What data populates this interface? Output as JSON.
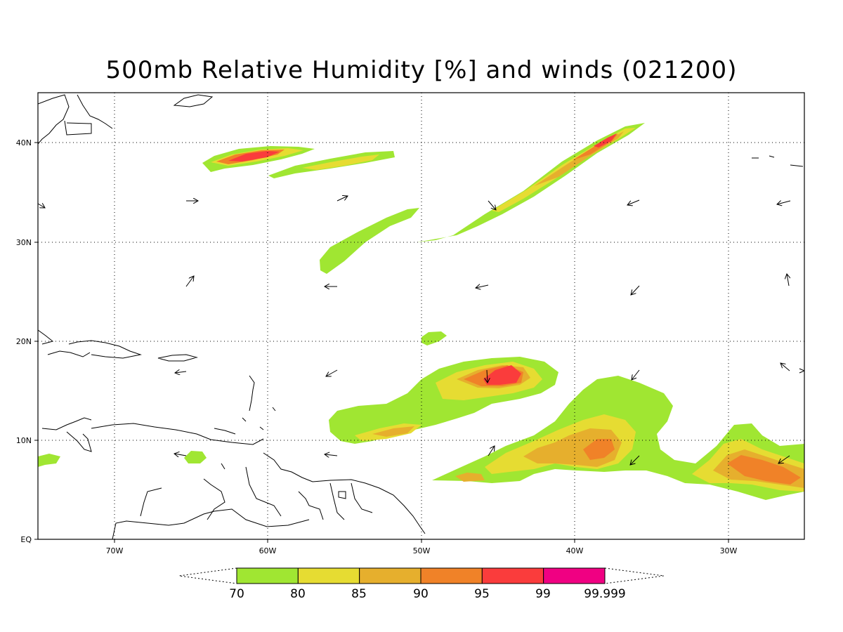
{
  "title": "500mb Relative Humidity [%] and winds (021200)",
  "map": {
    "lat_ticks": [
      "40N",
      "30N",
      "20N",
      "10N",
      "EQ"
    ],
    "lon_ticks": [
      "70W",
      "60W",
      "50W",
      "40W",
      "30W"
    ]
  },
  "colorbar": {
    "levels": [
      "70",
      "80",
      "85",
      "90",
      "95",
      "99",
      "99.999"
    ],
    "colors": [
      "#a0e632",
      "#e6dc32",
      "#e6af2d",
      "#f08228",
      "#fa3c3c",
      "#f00082"
    ]
  },
  "icons": {
    "wind": "wind-vector-arrow-icon"
  }
}
